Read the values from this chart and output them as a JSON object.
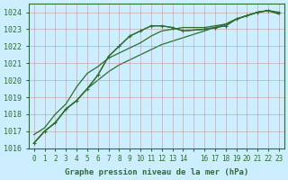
{
  "title": "Graphe pression niveau de la mer (hPa)",
  "background_color": "#cceeff",
  "grid_color": "#cc8888",
  "line_color": "#2d6e2d",
  "ylim": [
    1016,
    1024.5
  ],
  "xlim": [
    -0.5,
    23.5
  ],
  "yticks": [
    1016,
    1017,
    1018,
    1019,
    1020,
    1021,
    1022,
    1023,
    1024
  ],
  "xticks": [
    0,
    1,
    2,
    3,
    4,
    5,
    6,
    7,
    8,
    9,
    10,
    11,
    12,
    13,
    14,
    15,
    16,
    17,
    18,
    19,
    20,
    21,
    22,
    23
  ],
  "xtick_labels": [
    "0",
    "1",
    "2",
    "3",
    "4",
    "5",
    "6",
    "7",
    "8",
    "9",
    "10",
    "11",
    "12",
    "13",
    "14",
    "",
    "16",
    "17",
    "18",
    "19",
    "20",
    "21",
    "22",
    "23"
  ],
  "series": [
    [
      1016.3,
      1017.0,
      1017.5,
      1018.3,
      1018.8,
      1019.5,
      1020.3,
      1021.4,
      1022.0,
      1022.6,
      1022.9,
      1023.2,
      1023.2,
      1023.1,
      1022.9,
      null,
      1023.0,
      1023.1,
      1023.2,
      1023.6,
      1023.8,
      1024.0,
      1024.1,
      1024.0
    ],
    [
      1016.3,
      1017.0,
      1017.5,
      1018.3,
      1018.8,
      1019.5,
      1020.3,
      1021.4,
      1022.0,
      1022.6,
      1022.9,
      1023.2,
      1023.2,
      1023.1,
      1022.9,
      null,
      1023.0,
      1023.1,
      1023.2,
      1023.6,
      1023.8,
      1024.0,
      1024.1,
      1023.9
    ],
    [
      1016.8,
      1017.2,
      1018.0,
      1018.6,
      1019.6,
      1020.4,
      1020.8,
      1021.3,
      1021.6,
      1021.9,
      1022.2,
      1022.6,
      1022.9,
      1023.0,
      1023.1,
      null,
      1023.1,
      1023.2,
      1023.3,
      1023.6,
      1023.8,
      1024.0,
      1024.1,
      1023.9
    ],
    [
      1016.3,
      1017.0,
      1017.5,
      1018.3,
      1018.8,
      1019.5,
      1020.0,
      1020.5,
      1020.9,
      1021.2,
      1021.5,
      1021.8,
      1022.1,
      1022.3,
      1022.5,
      null,
      1022.9,
      1023.1,
      1023.3,
      1023.6,
      1023.8,
      1024.0,
      1024.1,
      1023.9
    ]
  ]
}
